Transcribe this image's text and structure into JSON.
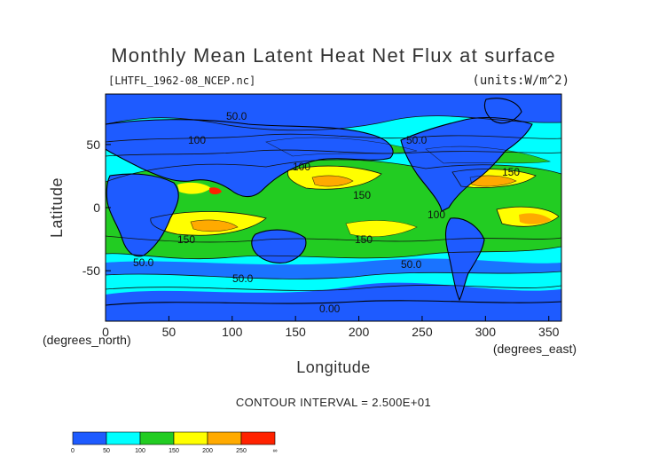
{
  "chart_data": {
    "type": "heatmap",
    "title": "Monthly Mean Latent Heat Net Flux at surface",
    "file_label": "[LHTFL_1962-08_NCEP.nc]",
    "units_label": "(units:W/m^2)",
    "xlabel": "Longitude",
    "ylabel": "Latitude",
    "x_unit_label": "(degrees_east)",
    "y_unit_label": "(degrees_north)",
    "xlim": [
      0,
      360
    ],
    "ylim": [
      -90,
      90
    ],
    "x_ticks": [
      "0",
      "50",
      "100",
      "150",
      "200",
      "250",
      "300",
      "350"
    ],
    "y_ticks": [
      "50",
      "0",
      "-50"
    ],
    "contour_interval_text": "CONTOUR INTERVAL = 2.500E+01",
    "contour_labels": [
      "50.0",
      "100",
      "150",
      "100",
      "150",
      "150",
      "50.0",
      "50.0",
      "50.0",
      "150",
      "100",
      "0.00",
      "50.0"
    ],
    "colorbar": {
      "levels": [
        "0",
        "50",
        "100",
        "150",
        "200",
        "250",
        "∞"
      ],
      "colors": [
        "#1e5bff",
        "#00ffff",
        "#22cc22",
        "#ffff00",
        "#ffaa00",
        "#ff2200"
      ]
    },
    "land_color": "#1e5bff"
  }
}
